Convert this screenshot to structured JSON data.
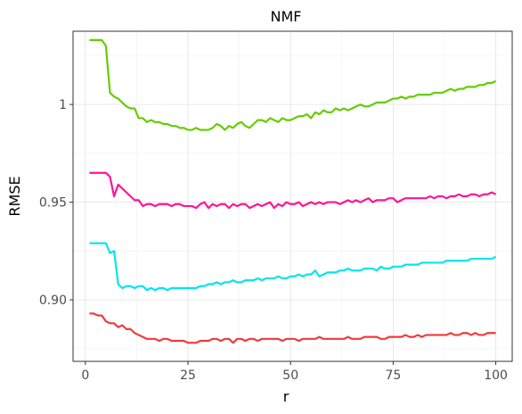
{
  "chart_data": {
    "type": "line",
    "title": "NMF",
    "xlabel": "r",
    "ylabel": "RMSE",
    "xlim": [
      -3,
      104
    ],
    "ylim": [
      0.8685,
      1.0375
    ],
    "x_ticks": [
      0,
      25,
      50,
      75,
      100
    ],
    "x_tick_labels": [
      "0",
      "25",
      "50",
      "75",
      "100"
    ],
    "y_ticks": [
      0.9,
      0.95,
      1.0
    ],
    "y_tick_labels": [
      "0.90",
      "0.95",
      "1"
    ],
    "grid": true,
    "legend": "none",
    "series": [
      {
        "color": "#66cc00",
        "x": [
          1,
          2,
          3,
          4,
          5,
          6,
          7,
          8,
          9,
          10,
          11,
          12,
          13,
          14,
          15,
          16,
          17,
          18,
          19,
          20,
          21,
          22,
          23,
          24,
          25,
          26,
          27,
          28,
          29,
          30,
          31,
          32,
          33,
          34,
          35,
          36,
          37,
          38,
          39,
          40,
          41,
          42,
          43,
          44,
          45,
          46,
          47,
          48,
          49,
          50,
          51,
          52,
          53,
          54,
          55,
          56,
          57,
          58,
          59,
          60,
          61,
          62,
          63,
          64,
          65,
          66,
          67,
          68,
          69,
          70,
          71,
          72,
          73,
          74,
          75,
          76,
          77,
          78,
          79,
          80,
          81,
          82,
          83,
          84,
          85,
          86,
          87,
          88,
          89,
          90,
          91,
          92,
          93,
          94,
          95,
          96,
          97,
          98,
          99,
          100
        ],
        "y": [
          1.033,
          1.033,
          1.033,
          1.033,
          1.03,
          1.006,
          1.004,
          1.003,
          1.001,
          0.999,
          0.998,
          0.998,
          0.993,
          0.993,
          0.991,
          0.992,
          0.991,
          0.991,
          0.99,
          0.99,
          0.989,
          0.989,
          0.988,
          0.988,
          0.987,
          0.987,
          0.988,
          0.987,
          0.987,
          0.987,
          0.988,
          0.99,
          0.989,
          0.987,
          0.989,
          0.988,
          0.99,
          0.991,
          0.989,
          0.988,
          0.99,
          0.992,
          0.992,
          0.991,
          0.993,
          0.992,
          0.991,
          0.993,
          0.992,
          0.992,
          0.993,
          0.994,
          0.994,
          0.995,
          0.993,
          0.996,
          0.995,
          0.997,
          0.996,
          0.996,
          0.998,
          0.997,
          0.998,
          0.997,
          0.998,
          0.999,
          1.0,
          0.999,
          0.999,
          1.0,
          1.001,
          1.001,
          1.001,
          1.002,
          1.003,
          1.003,
          1.004,
          1.003,
          1.004,
          1.004,
          1.005,
          1.005,
          1.005,
          1.005,
          1.006,
          1.006,
          1.006,
          1.007,
          1.008,
          1.007,
          1.008,
          1.008,
          1.009,
          1.009,
          1.009,
          1.01,
          1.01,
          1.011,
          1.011,
          1.012
        ]
      },
      {
        "color": "#ff1493",
        "x": [
          1,
          2,
          3,
          4,
          5,
          6,
          7,
          8,
          9,
          10,
          11,
          12,
          13,
          14,
          15,
          16,
          17,
          18,
          19,
          20,
          21,
          22,
          23,
          24,
          25,
          26,
          27,
          28,
          29,
          30,
          31,
          32,
          33,
          34,
          35,
          36,
          37,
          38,
          39,
          40,
          41,
          42,
          43,
          44,
          45,
          46,
          47,
          48,
          49,
          50,
          51,
          52,
          53,
          54,
          55,
          56,
          57,
          58,
          59,
          60,
          61,
          62,
          63,
          64,
          65,
          66,
          67,
          68,
          69,
          70,
          71,
          72,
          73,
          74,
          75,
          76,
          77,
          78,
          79,
          80,
          81,
          82,
          83,
          84,
          85,
          86,
          87,
          88,
          89,
          90,
          91,
          92,
          93,
          94,
          95,
          96,
          97,
          98,
          99,
          100
        ],
        "y": [
          0.965,
          0.965,
          0.965,
          0.965,
          0.965,
          0.963,
          0.953,
          0.959,
          0.957,
          0.955,
          0.953,
          0.951,
          0.951,
          0.948,
          0.949,
          0.949,
          0.948,
          0.949,
          0.949,
          0.949,
          0.948,
          0.949,
          0.949,
          0.948,
          0.948,
          0.948,
          0.947,
          0.949,
          0.95,
          0.947,
          0.949,
          0.948,
          0.949,
          0.949,
          0.947,
          0.949,
          0.948,
          0.949,
          0.949,
          0.947,
          0.948,
          0.949,
          0.948,
          0.949,
          0.95,
          0.947,
          0.949,
          0.948,
          0.95,
          0.949,
          0.949,
          0.95,
          0.948,
          0.949,
          0.95,
          0.949,
          0.95,
          0.949,
          0.95,
          0.95,
          0.95,
          0.949,
          0.95,
          0.951,
          0.95,
          0.951,
          0.95,
          0.951,
          0.952,
          0.95,
          0.951,
          0.951,
          0.951,
          0.952,
          0.952,
          0.95,
          0.951,
          0.952,
          0.952,
          0.952,
          0.952,
          0.952,
          0.952,
          0.953,
          0.952,
          0.953,
          0.953,
          0.952,
          0.953,
          0.953,
          0.954,
          0.953,
          0.953,
          0.954,
          0.954,
          0.953,
          0.954,
          0.954,
          0.955,
          0.954
        ]
      },
      {
        "color": "#00e5ee",
        "x": [
          1,
          2,
          3,
          4,
          5,
          6,
          7,
          8,
          9,
          10,
          11,
          12,
          13,
          14,
          15,
          16,
          17,
          18,
          19,
          20,
          21,
          22,
          23,
          24,
          25,
          26,
          27,
          28,
          29,
          30,
          31,
          32,
          33,
          34,
          35,
          36,
          37,
          38,
          39,
          40,
          41,
          42,
          43,
          44,
          45,
          46,
          47,
          48,
          49,
          50,
          51,
          52,
          53,
          54,
          55,
          56,
          57,
          58,
          59,
          60,
          61,
          62,
          63,
          64,
          65,
          66,
          67,
          68,
          69,
          70,
          71,
          72,
          73,
          74,
          75,
          76,
          77,
          78,
          79,
          80,
          81,
          82,
          83,
          84,
          85,
          86,
          87,
          88,
          89,
          90,
          91,
          92,
          93,
          94,
          95,
          96,
          97,
          98,
          99,
          100
        ],
        "y": [
          0.929,
          0.929,
          0.929,
          0.929,
          0.929,
          0.924,
          0.925,
          0.908,
          0.906,
          0.907,
          0.907,
          0.906,
          0.907,
          0.907,
          0.905,
          0.906,
          0.905,
          0.906,
          0.906,
          0.905,
          0.906,
          0.906,
          0.906,
          0.906,
          0.906,
          0.906,
          0.906,
          0.907,
          0.907,
          0.908,
          0.908,
          0.909,
          0.908,
          0.909,
          0.909,
          0.91,
          0.909,
          0.909,
          0.91,
          0.91,
          0.91,
          0.911,
          0.91,
          0.911,
          0.911,
          0.911,
          0.912,
          0.911,
          0.911,
          0.912,
          0.912,
          0.913,
          0.912,
          0.913,
          0.913,
          0.915,
          0.912,
          0.913,
          0.914,
          0.914,
          0.914,
          0.915,
          0.915,
          0.916,
          0.915,
          0.915,
          0.915,
          0.916,
          0.916,
          0.916,
          0.915,
          0.917,
          0.916,
          0.916,
          0.917,
          0.917,
          0.917,
          0.918,
          0.918,
          0.918,
          0.918,
          0.919,
          0.919,
          0.919,
          0.919,
          0.919,
          0.919,
          0.92,
          0.92,
          0.92,
          0.92,
          0.92,
          0.92,
          0.921,
          0.921,
          0.921,
          0.921,
          0.921,
          0.921,
          0.922
        ]
      },
      {
        "color": "#ee3b3b",
        "x": [
          1,
          2,
          3,
          4,
          5,
          6,
          7,
          8,
          9,
          10,
          11,
          12,
          13,
          14,
          15,
          16,
          17,
          18,
          19,
          20,
          21,
          22,
          23,
          24,
          25,
          26,
          27,
          28,
          29,
          30,
          31,
          32,
          33,
          34,
          35,
          36,
          37,
          38,
          39,
          40,
          41,
          42,
          43,
          44,
          45,
          46,
          47,
          48,
          49,
          50,
          51,
          52,
          53,
          54,
          55,
          56,
          57,
          58,
          59,
          60,
          61,
          62,
          63,
          64,
          65,
          66,
          67,
          68,
          69,
          70,
          71,
          72,
          73,
          74,
          75,
          76,
          77,
          78,
          79,
          80,
          81,
          82,
          83,
          84,
          85,
          86,
          87,
          88,
          89,
          90,
          91,
          92,
          93,
          94,
          95,
          96,
          97,
          98,
          99,
          100
        ],
        "y": [
          0.893,
          0.893,
          0.892,
          0.892,
          0.889,
          0.888,
          0.888,
          0.886,
          0.887,
          0.885,
          0.885,
          0.883,
          0.882,
          0.881,
          0.88,
          0.88,
          0.88,
          0.879,
          0.88,
          0.88,
          0.879,
          0.879,
          0.879,
          0.879,
          0.878,
          0.878,
          0.878,
          0.879,
          0.879,
          0.879,
          0.88,
          0.88,
          0.879,
          0.88,
          0.88,
          0.878,
          0.88,
          0.88,
          0.879,
          0.88,
          0.88,
          0.879,
          0.88,
          0.88,
          0.88,
          0.88,
          0.88,
          0.879,
          0.88,
          0.88,
          0.88,
          0.879,
          0.88,
          0.88,
          0.88,
          0.88,
          0.881,
          0.88,
          0.88,
          0.88,
          0.88,
          0.88,
          0.88,
          0.881,
          0.88,
          0.88,
          0.88,
          0.881,
          0.881,
          0.881,
          0.881,
          0.88,
          0.88,
          0.881,
          0.881,
          0.881,
          0.881,
          0.882,
          0.881,
          0.881,
          0.882,
          0.881,
          0.882,
          0.882,
          0.882,
          0.882,
          0.882,
          0.882,
          0.883,
          0.882,
          0.882,
          0.883,
          0.883,
          0.882,
          0.883,
          0.882,
          0.882,
          0.883,
          0.883,
          0.883
        ]
      }
    ]
  }
}
